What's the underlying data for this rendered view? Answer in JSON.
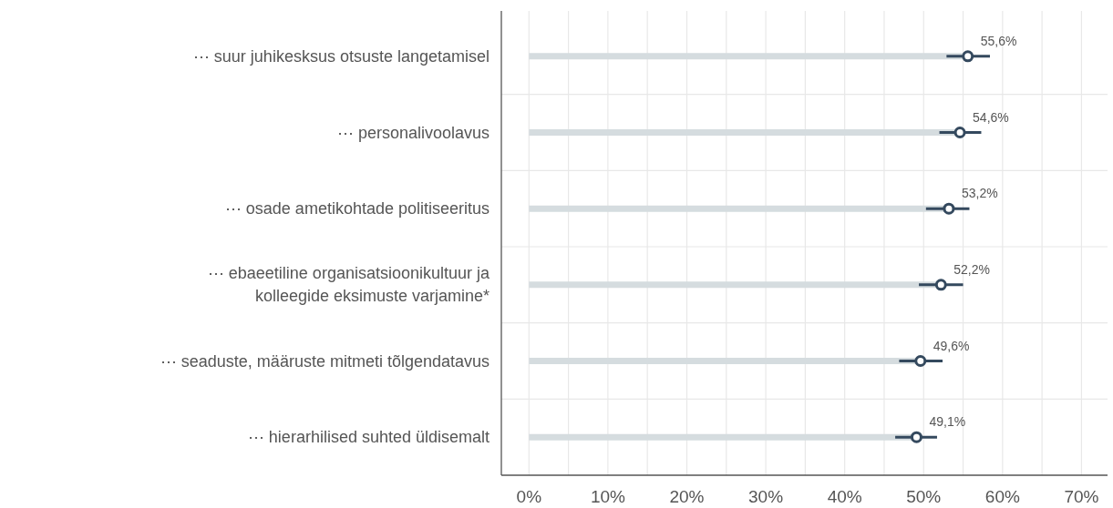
{
  "chart_data": {
    "type": "lollipop",
    "orientation": "horizontal",
    "categories": [
      "⋯ suur juhikesksus otsuste langetamisel",
      "⋯ personalivoolavus",
      "⋯ osade ametikohtade politiseeritus",
      "⋯ ebaeetiline organisatsioonikultuur ja kolleegide eksimuste varjamine*",
      "⋯ seaduste, määruste mitmeti tõlgendatavus",
      "⋯ hierarhilised suhted üldisemalt"
    ],
    "series": [
      {
        "color": "#34495e",
        "values": [
          55.6,
          54.6,
          53.2,
          52.2,
          49.6,
          49.1
        ],
        "errors": [
          [
            52.9,
            58.4
          ],
          [
            52.0,
            57.3
          ],
          [
            50.3,
            55.8
          ],
          [
            49.4,
            55.0
          ],
          [
            46.9,
            52.4
          ],
          [
            46.4,
            51.7
          ]
        ],
        "value_labels": [
          "55,6%",
          "54,6%",
          "53,2%",
          "52,2%",
          "49,6%",
          "49,1%"
        ]
      }
    ],
    "xlim": [
      -3.5,
      73.3
    ],
    "xticks": [
      {
        "value": 0,
        "label": "0%"
      },
      {
        "value": 5,
        "label": null
      },
      {
        "value": 10,
        "label": "10%"
      },
      {
        "value": 15,
        "label": null
      },
      {
        "value": 20,
        "label": "20%"
      },
      {
        "value": 25,
        "label": null
      },
      {
        "value": 30,
        "label": "30%"
      },
      {
        "value": 35,
        "label": null
      },
      {
        "value": 40,
        "label": "40%"
      },
      {
        "value": 45,
        "label": null
      },
      {
        "value": 50,
        "label": "50%"
      },
      {
        "value": 55,
        "label": null
      },
      {
        "value": 60,
        "label": "60%"
      },
      {
        "value": 65,
        "label": null
      },
      {
        "value": 70,
        "label": "70%"
      }
    ],
    "grid": true,
    "marker": "circle"
  }
}
